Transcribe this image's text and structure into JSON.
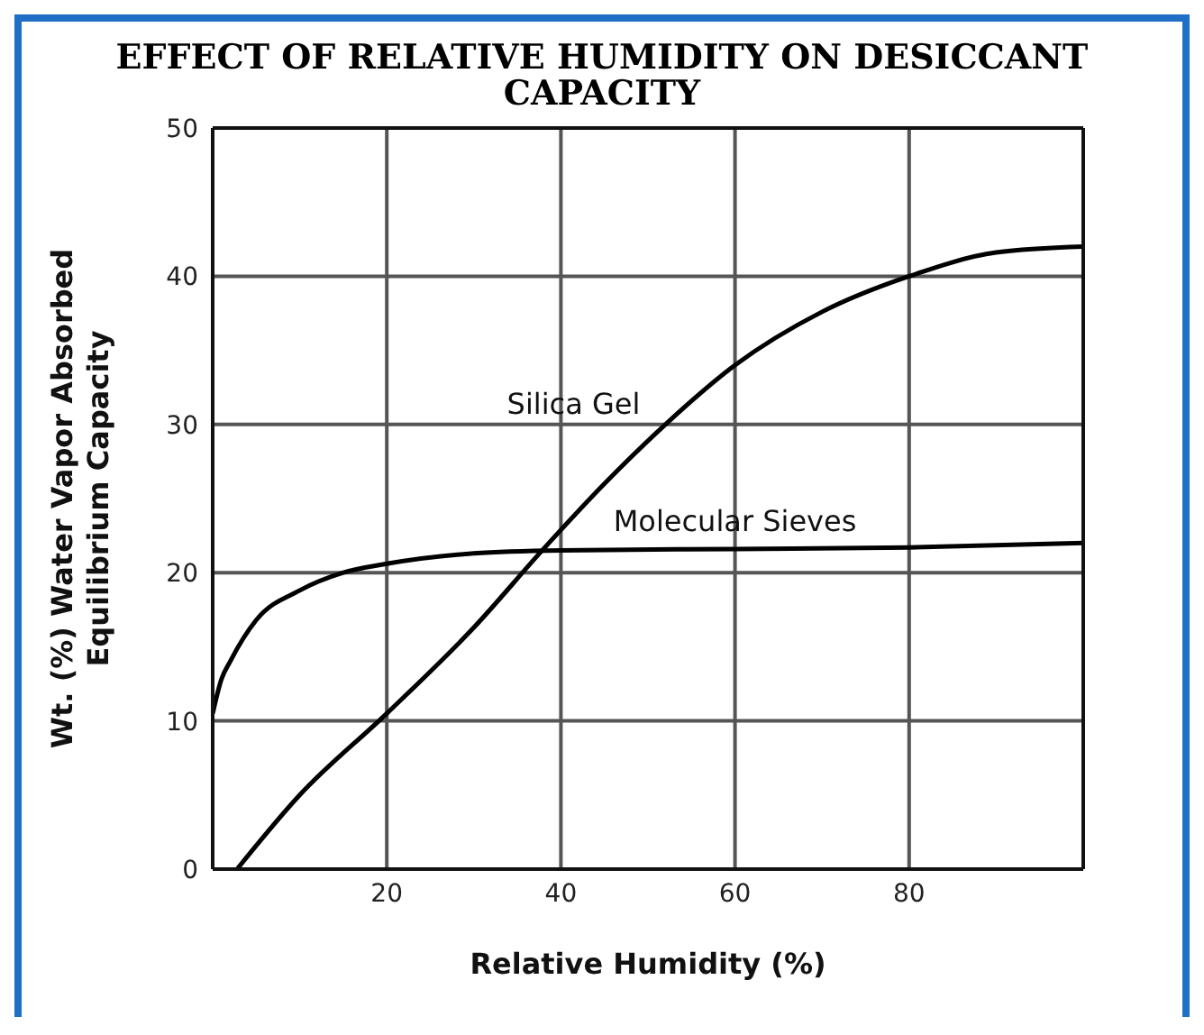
{
  "chart_data": {
    "type": "line",
    "title": "EFFECT OF RELATIVE HUMIDITY ON DESICCANT CAPACITY",
    "xlabel": "Relative Humidity (%)",
    "ylabel": "Wt. (%) Water Vapor Absorbed\nEquilibrium Capacity",
    "xlim": [
      0,
      100
    ],
    "xticks": [
      20,
      40,
      60,
      80
    ],
    "ylim": [
      0,
      50
    ],
    "yticks": [
      0,
      10,
      20,
      30,
      40,
      50
    ],
    "grid": true,
    "legend": false,
    "marker": "none",
    "line_style": "solid",
    "series": [
      {
        "name": "Silica Gel",
        "color": "#000000",
        "x": [
          2.8,
          10,
          20,
          30,
          38,
          45,
          52,
          60,
          70,
          80,
          90,
          100
        ],
        "values": [
          0,
          5,
          10.5,
          16.3,
          21.6,
          26,
          30,
          34,
          37.6,
          40,
          41.6,
          42
        ]
      },
      {
        "name": "Molecular Sieves",
        "color": "#000000",
        "x": [
          0,
          1,
          2,
          5,
          10,
          15,
          20,
          30,
          40,
          60,
          80,
          100
        ],
        "values": [
          10.5,
          12.8,
          14,
          16.8,
          18.8,
          20,
          20.6,
          21.3,
          21.5,
          21.6,
          21.7,
          22
        ]
      }
    ]
  }
}
